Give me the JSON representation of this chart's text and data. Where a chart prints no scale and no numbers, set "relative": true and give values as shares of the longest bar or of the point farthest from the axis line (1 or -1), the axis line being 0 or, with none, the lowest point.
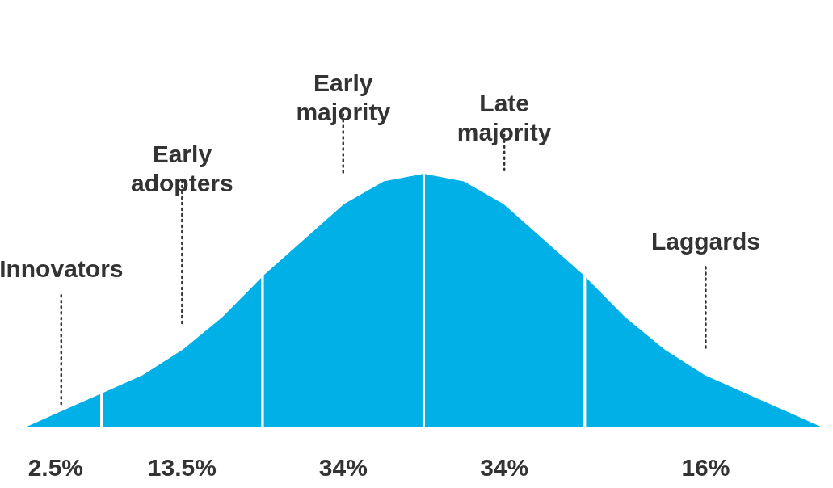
{
  "chart_data": {
    "type": "area",
    "relative": true,
    "categories": [
      null,
      null,
      null,
      null,
      null,
      null,
      null,
      null,
      null,
      null,
      null,
      null,
      null,
      null,
      null,
      null,
      null,
      null,
      null,
      null,
      null
    ],
    "series": [
      {
        "name": "Innovators",
        "color": "#00b0e6",
        "values": [
          0,
          0.07,
          0.14,
          null,
          null,
          null,
          null,
          null,
          null,
          null,
          null,
          null,
          null,
          null,
          null,
          null,
          null,
          null,
          null,
          null,
          null
        ]
      },
      {
        "name": "Early adopters",
        "color": "#00b0e6",
        "values": [
          null,
          null,
          0.14,
          0.21,
          0.31,
          0.44,
          0.6,
          null,
          null,
          null,
          null,
          null,
          null,
          null,
          null,
          null,
          null,
          null,
          null,
          null,
          null
        ]
      },
      {
        "name": "Early majority",
        "color": "#00b0e6",
        "values": [
          null,
          null,
          null,
          null,
          null,
          null,
          0.6,
          0.74,
          0.88,
          0.97,
          1,
          null,
          null,
          null,
          null,
          null,
          null,
          null,
          null,
          null,
          null
        ]
      },
      {
        "name": "Late majority",
        "color": "#00b0e6",
        "values": [
          null,
          null,
          null,
          null,
          null,
          null,
          null,
          null,
          null,
          null,
          1,
          0.97,
          0.88,
          0.74,
          0.6,
          null,
          null,
          null,
          null,
          null,
          null
        ]
      },
      {
        "name": "Laggards",
        "color": "#00b0e6",
        "values": [
          null,
          null,
          null,
          null,
          null,
          null,
          null,
          null,
          null,
          null,
          null,
          null,
          null,
          null,
          0.6,
          0.44,
          0.31,
          0.21,
          0.14,
          0.07,
          0
        ]
      }
    ],
    "annotations": [
      "2.5%",
      "13.5%",
      "34%",
      "34%",
      "16%"
    ]
  }
}
